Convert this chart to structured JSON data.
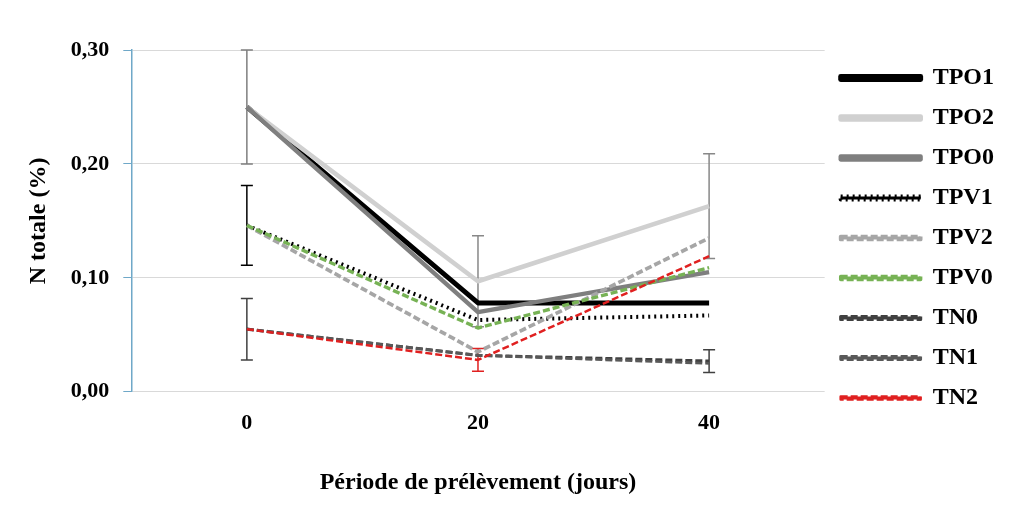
{
  "chart_data": {
    "type": "line",
    "xlabel": "Période de prélèvement (jours)",
    "ylabel": "N totale (%)",
    "categories": [
      "0",
      "20",
      "40"
    ],
    "ylim": [
      0,
      0.3
    ],
    "yticks": [
      {
        "value": 0,
        "label": "0,00"
      },
      {
        "value": 0.1,
        "label": "0,10"
      },
      {
        "value": 0.2,
        "label": "0,20"
      },
      {
        "value": 0.3,
        "label": "0,30"
      }
    ],
    "grid": "y",
    "legend": "right",
    "marker": "none",
    "series": [
      {
        "name": "TPO1",
        "color": "#000000",
        "line_style": "solid",
        "values": [
          0.25,
          0.078,
          0.078
        ]
      },
      {
        "name": "TPO2",
        "color": "#d0d0d0",
        "line_style": "solid",
        "values": [
          0.25,
          0.097,
          0.163
        ],
        "errors": [
          null,
          0.04,
          0.046
        ]
      },
      {
        "name": "TPO0",
        "color": "#7f7f7f",
        "line_style": "solid",
        "values": [
          0.25,
          0.07,
          0.105
        ],
        "errors": [
          0.05,
          null,
          null
        ]
      },
      {
        "name": "TPV1",
        "color": "#000000",
        "line_style": "dotted",
        "values": [
          0.146,
          0.063,
          0.067
        ],
        "errors": [
          0.035,
          null,
          null
        ]
      },
      {
        "name": "TPV2",
        "color": "#a6a6a6",
        "line_style": "dashed",
        "values": [
          0.146,
          0.035,
          0.135
        ]
      },
      {
        "name": "TPV0",
        "color": "#77b255",
        "line_style": "dashed",
        "values": [
          0.146,
          0.056,
          0.109
        ]
      },
      {
        "name": "TN0",
        "color": "#404040",
        "line_style": "dashed",
        "values": [
          0.055,
          0.032,
          0.027
        ],
        "errors": [
          0.027,
          null,
          0.01
        ]
      },
      {
        "name": "TN1",
        "color": "#595959",
        "line_style": "dashed",
        "values": [
          0.055,
          0.032,
          0.025
        ]
      },
      {
        "name": "TN2",
        "color": "#e02020",
        "line_style": "dashed",
        "values": [
          0.055,
          0.028,
          0.119
        ],
        "errors": [
          null,
          0.01,
          null
        ]
      }
    ]
  }
}
